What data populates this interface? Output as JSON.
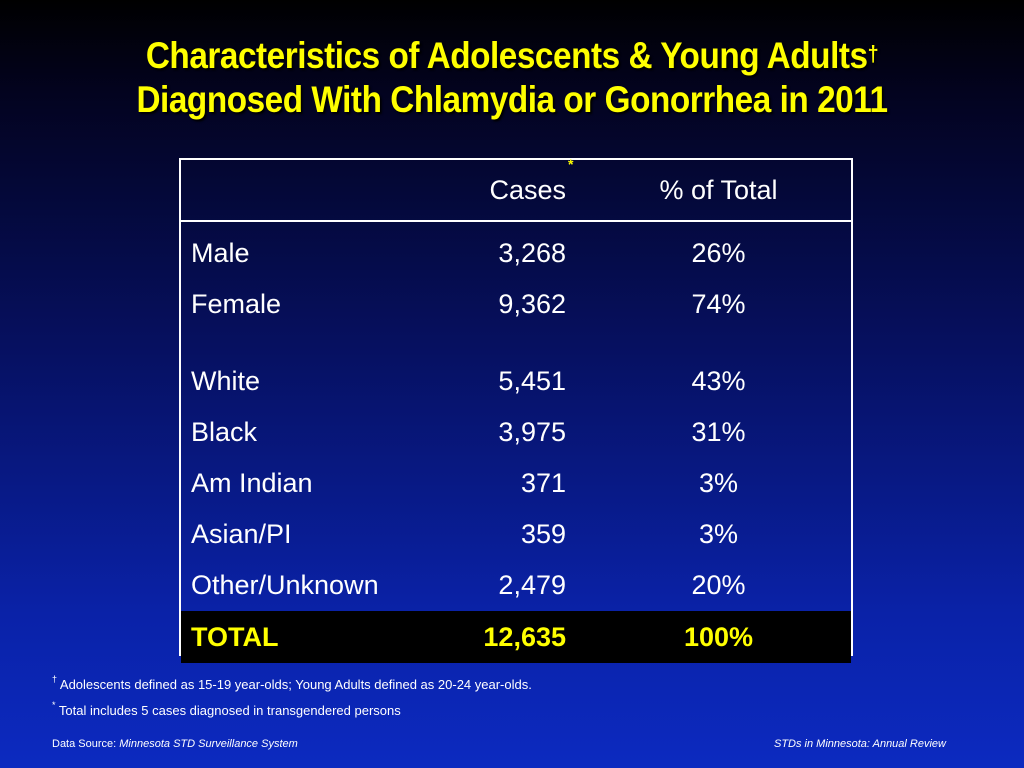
{
  "title": {
    "line1": "Characteristics of Adolescents & Young Adults",
    "line1_mark": "†",
    "line2": "Diagnosed With Chlamydia or Gonorrhea in 2011"
  },
  "table": {
    "headers": {
      "label": "",
      "cases": "Cases",
      "pct": "% of Total"
    },
    "rows": [
      {
        "label": "Male",
        "cases": "3,268",
        "pct": "26%"
      },
      {
        "label": "Female",
        "cases": "9,362",
        "pct": "74%"
      },
      {
        "label": "White",
        "cases": "5,451",
        "pct": "43%"
      },
      {
        "label": "Black",
        "cases": "3,975",
        "pct": "31%"
      },
      {
        "label": "Am Indian",
        "cases": "371",
        "pct": "3%"
      },
      {
        "label": "Asian/PI",
        "cases": "359",
        "pct": "3%"
      },
      {
        "label": "Other/Unknown",
        "cases": "2,479",
        "pct": "20%"
      }
    ],
    "total": {
      "label": "TOTAL",
      "cases": "12,635",
      "cases_mark": "*",
      "pct": "100%"
    }
  },
  "footnotes": [
    {
      "mark": "†",
      "text": " Adolescents defined as 15-19 year-olds; Young Adults defined as 20-24 year-olds."
    },
    {
      "mark": "*",
      "text": " Total includes 5 cases diagnosed in transgendered persons"
    }
  ],
  "footer": {
    "source_prefix": "Data Source: ",
    "source_name": "Minnesota STD Surveillance System",
    "review": "STDs in Minnesota: Annual Review"
  },
  "colors": {
    "title": "#ffff00",
    "total_text": "#ffff00",
    "total_bg": "#000000",
    "background_top": "#000000",
    "background_bottom": "#0c2ac0"
  }
}
